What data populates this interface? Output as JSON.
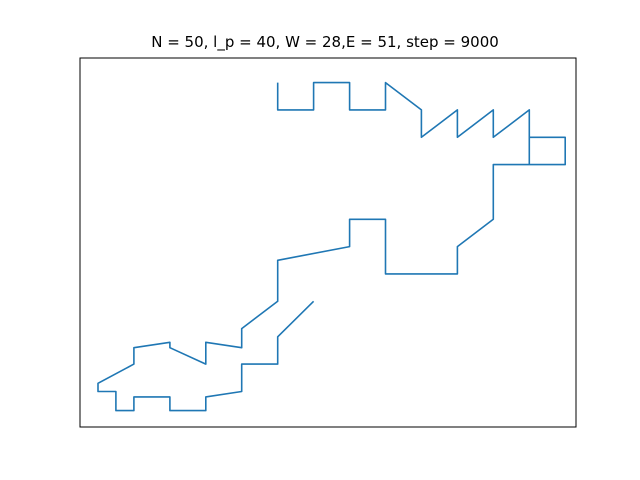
{
  "chart_data": {
    "type": "line",
    "title": "N = 50, l_p = 40, W = 28,E = 51, step = 9000",
    "xlabel": "",
    "ylabel": "",
    "xticks": "hidden",
    "yticks": "hidden",
    "grid": false,
    "legend": "none",
    "xlim": [
      -0.5,
      13.3
    ],
    "ylim": [
      -6.6,
      6.9
    ],
    "series": [
      {
        "color": "#1f77b4",
        "x": [
          5,
          5,
          6,
          6,
          7,
          7,
          8,
          8,
          9,
          9,
          10,
          10,
          11,
          11,
          12,
          12,
          13,
          13,
          12,
          12,
          11,
          11,
          10,
          10,
          8,
          8,
          7,
          7,
          5,
          5,
          4,
          4,
          3,
          3,
          2,
          2,
          1,
          1,
          0,
          0,
          0.5,
          0.5,
          1,
          1,
          2,
          2,
          3,
          3,
          4,
          4,
          5,
          5,
          6
        ],
        "y": [
          6,
          5,
          5,
          6,
          6,
          5,
          5,
          6,
          5,
          4,
          5,
          4,
          5,
          4,
          5,
          3,
          3,
          4,
          4,
          3,
          3,
          1,
          0,
          -1,
          -1,
          1,
          1,
          0,
          -0.5,
          -2,
          -3,
          -3.7,
          -3.5,
          -4.3,
          -3.7,
          -3.5,
          -3.7,
          -4.3,
          -5,
          -5.3,
          -5.3,
          -6,
          -6,
          -5.5,
          -5.5,
          -6,
          -6,
          -5.5,
          -5.3,
          -4.3,
          -4.3,
          -3.3,
          -2
        ]
      }
    ]
  }
}
